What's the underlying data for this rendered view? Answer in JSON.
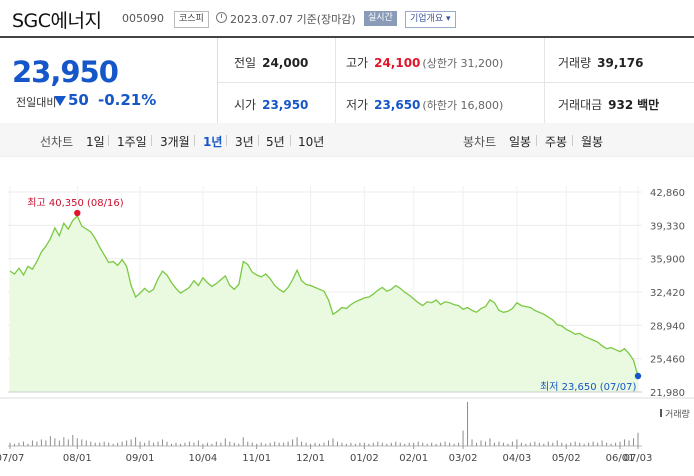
{
  "header": {
    "stock_name": "SGC에너지",
    "stock_code": "005090",
    "market_badge": "코스피",
    "as_of": "2023.07.07 기준(장마감)",
    "realtime_badge": "실시간",
    "overview_button": "기업개요 ▾"
  },
  "summary": {
    "current_price": "23,950",
    "change_label": "전일대비",
    "change_abs": "50",
    "change_pct": "-0.21%",
    "change_icon": "down-triangle-icon",
    "stats": {
      "prev_close": {
        "label": "전일",
        "value": "24,000"
      },
      "high": {
        "label": "고가",
        "value": "24,100",
        "sub": "(상한가 31,200)"
      },
      "volume": {
        "label": "거래량",
        "value": "39,176"
      },
      "open": {
        "label": "시가",
        "value": "23,950"
      },
      "low": {
        "label": "저가",
        "value": "23,650",
        "sub": "(하한가 16,800)"
      },
      "amount": {
        "label": "거래대금",
        "value": "932",
        "unit": "백만"
      }
    }
  },
  "toolbar": {
    "line_chart_label": "선차트",
    "periods": [
      "1일",
      "1주일",
      "3개월",
      "1년",
      "3년",
      "5년",
      "10년"
    ],
    "active_period": "1년",
    "candle_chart_label": "봉차트",
    "candle_periods": [
      "일봉",
      "주봉",
      "월봉"
    ]
  },
  "colors": {
    "accent_up": "#e0152a",
    "accent_down": "#1556c8",
    "line": "#7ac943",
    "area": "#eafae0"
  },
  "chart_data": {
    "type": "area",
    "period": "1년",
    "ylim": [
      21980,
      42860
    ],
    "y_ticks": [
      "42,860",
      "39,330",
      "35,900",
      "32,420",
      "28,940",
      "25,460",
      "21,980"
    ],
    "x_ticks": [
      "07/07",
      "08/01",
      "09/01",
      "10/04",
      "11/01",
      "12/01",
      "01/02",
      "02/01",
      "03/02",
      "04/03",
      "05/02",
      "06/01",
      "07/03"
    ],
    "grid": true,
    "annotations": {
      "high": {
        "text": "최고 40,350 (08/16)",
        "value": 40350
      },
      "low": {
        "text": "최저 23,650 (07/07)",
        "value": 23650
      }
    },
    "price_series": [
      34600,
      34300,
      34900,
      34200,
      35100,
      34800,
      35600,
      36600,
      37200,
      38000,
      39100,
      38300,
      39600,
      39000,
      39900,
      40350,
      39300,
      39000,
      38700,
      38000,
      37100,
      36300,
      35500,
      35600,
      35200,
      35800,
      35100,
      33100,
      31900,
      32300,
      32800,
      32400,
      32700,
      33800,
      34600,
      34200,
      33400,
      32800,
      32300,
      32600,
      32900,
      33600,
      33100,
      33900,
      33400,
      33000,
      33300,
      33700,
      34100,
      33100,
      32700,
      33200,
      35600,
      35300,
      34500,
      34200,
      34000,
      34300,
      33800,
      33100,
      32700,
      32400,
      32900,
      33700,
      34700,
      33600,
      33200,
      33100,
      32900,
      32700,
      32500,
      31600,
      30100,
      30400,
      30800,
      30700,
      31100,
      31400,
      31600,
      31800,
      31900,
      32200,
      32600,
      32900,
      32500,
      32700,
      33100,
      32800,
      32400,
      32100,
      31700,
      31300,
      31000,
      31400,
      31300,
      31600,
      31100,
      31400,
      31300,
      31100,
      31000,
      30600,
      30800,
      30500,
      30300,
      30700,
      30900,
      31600,
      31300,
      30500,
      30300,
      30400,
      30700,
      31300,
      31000,
      30900,
      30800,
      30500,
      30300,
      30100,
      29800,
      29500,
      29000,
      28900,
      28500,
      28300,
      28000,
      28100,
      27800,
      27600,
      27400,
      27200,
      26800,
      26500,
      26600,
      26400,
      26200,
      26500,
      26000,
      25300,
      23650
    ],
    "volume_series": [
      3,
      2,
      3,
      4,
      2,
      5,
      4,
      6,
      5,
      9,
      7,
      5,
      8,
      6,
      10,
      7,
      6,
      5,
      4,
      3,
      3,
      4,
      3,
      2,
      3,
      4,
      5,
      6,
      8,
      4,
      3,
      5,
      3,
      4,
      6,
      4,
      2,
      3,
      2,
      3,
      4,
      3,
      5,
      2,
      3,
      2,
      4,
      3,
      7,
      4,
      3,
      2,
      8,
      4,
      3,
      2,
      3,
      2,
      3,
      4,
      3,
      3,
      4,
      6,
      8,
      4,
      3,
      2,
      3,
      2,
      3,
      5,
      7,
      4,
      3,
      2,
      3,
      2,
      3,
      3,
      2,
      3,
      4,
      3,
      2,
      3,
      4,
      3,
      2,
      3,
      3,
      4,
      3,
      2,
      3,
      2,
      3,
      4,
      3,
      2,
      3,
      14,
      40,
      6,
      3,
      5,
      4,
      7,
      3,
      4,
      3,
      2,
      4,
      6,
      3,
      2,
      3,
      4,
      3,
      2,
      4,
      3,
      5,
      3,
      2,
      3,
      4,
      3,
      2,
      3,
      4,
      3,
      5,
      3,
      2,
      3,
      4,
      6,
      5,
      7,
      12
    ],
    "volume_label": "거래량"
  }
}
